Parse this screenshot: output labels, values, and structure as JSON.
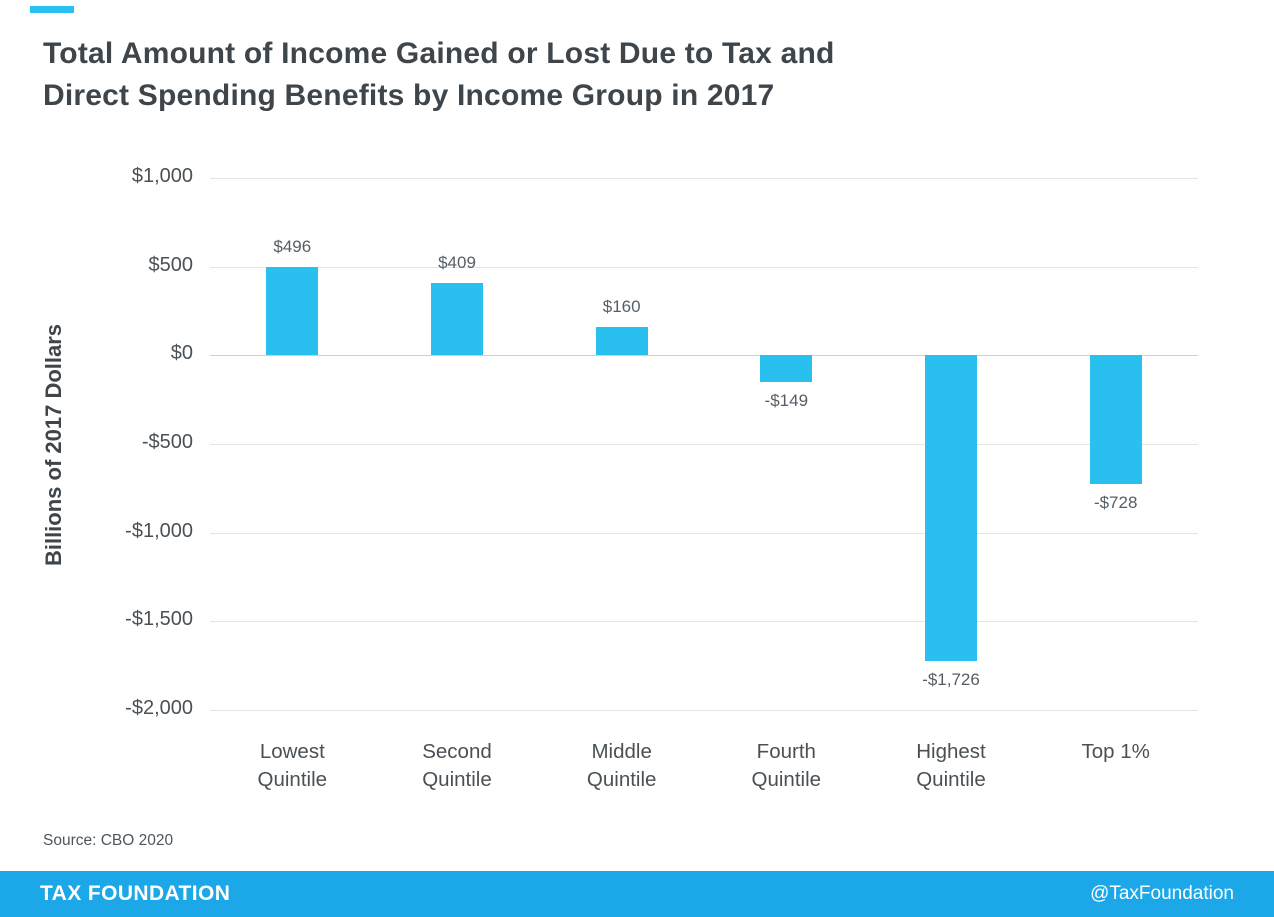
{
  "accent_color": "#29BFEF",
  "title": {
    "line1": "Total Amount of Income Gained or Lost Due to Tax and",
    "line2": "Direct Spending Benefits by Income Group in 2017"
  },
  "chart_data": {
    "type": "bar",
    "title": "Total Amount of Income Gained or Lost Due to Tax and Direct Spending Benefits by Income Group in 2017",
    "categories": [
      "Lowest Quintile",
      "Second Quintile",
      "Middle Quintile",
      "Fourth Quintile",
      "Highest Quintile",
      "Top 1%"
    ],
    "values": [
      496,
      409,
      160,
      -149,
      -1726,
      -728
    ],
    "value_labels": [
      "$496",
      "$409",
      "$160",
      "-$149",
      "-$1,726",
      "-$728"
    ],
    "xlabel": "",
    "ylabel": "Billions of 2017 Dollars",
    "ylim": [
      -2000,
      1000
    ],
    "ytick_values": [
      1000,
      500,
      0,
      -500,
      -1000,
      -1500,
      -2000
    ],
    "ytick_labels": [
      "$1,000",
      "$500",
      "$0",
      "-$500",
      "-$1,000",
      "-$1,500",
      "-$2,000"
    ],
    "grid": true,
    "legend": "none",
    "bar_color": "#29BFEF"
  },
  "source": "Source: CBO 2020",
  "footer": {
    "brand": "TAX FOUNDATION",
    "handle": "@TaxFoundation",
    "background": "#1BA7E8"
  }
}
